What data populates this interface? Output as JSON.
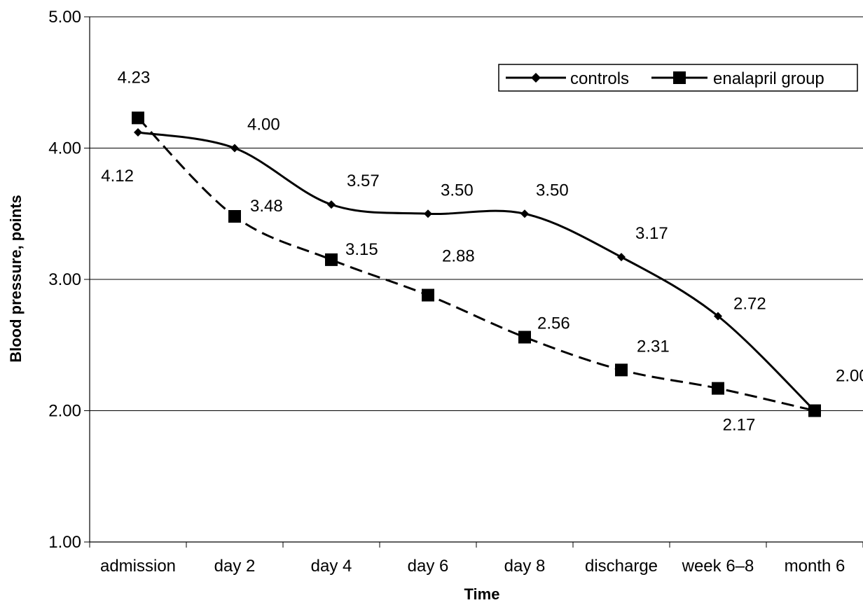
{
  "chart_data": {
    "type": "line",
    "title": "",
    "xlabel": "Time",
    "ylabel": "Blood pressure, points",
    "categories": [
      "admission",
      "day 2",
      "day 4",
      "day 6",
      "day 8",
      "discharge",
      "week 6–8",
      "month 6"
    ],
    "ylim": [
      1.0,
      5.0
    ],
    "yticks": [
      "1.00",
      "2.00",
      "3.00",
      "4.00",
      "5.00"
    ],
    "grid": "horizontal",
    "legend_position": "top-right",
    "series": [
      {
        "name": "controls",
        "values": [
          4.12,
          4.0,
          3.57,
          3.5,
          3.5,
          3.17,
          2.72,
          2.0
        ],
        "labels": [
          "4.12",
          "4.00",
          "3.57",
          "3.50",
          "3.50",
          "3.17",
          "2.72",
          ""
        ],
        "line_style": "solid",
        "marker": "diamond",
        "color": "#000000"
      },
      {
        "name": "enalapril group",
        "values": [
          4.23,
          3.48,
          3.15,
          2.88,
          2.56,
          2.31,
          2.17,
          2.0
        ],
        "labels": [
          "4.23",
          "3.48",
          "3.15",
          "2.88",
          "2.56",
          "2.31",
          "2.17",
          "2.00"
        ],
        "line_style": "dashed",
        "marker": "square",
        "color": "#000000"
      }
    ]
  }
}
